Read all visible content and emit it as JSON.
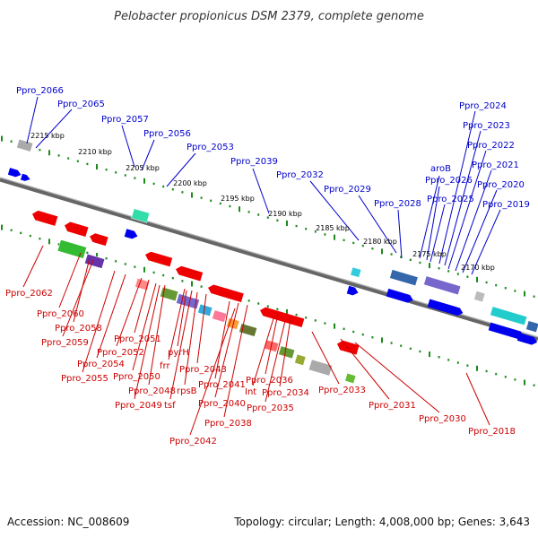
{
  "title": "Pelobacter propionicus DSM 2379, complete genome",
  "accession": "Accession: NC_008609",
  "topology": "Topology: circular; Length: 4,008,000 bp; Genes: 3,643",
  "colors": {
    "blue": "#0000cc",
    "red": "#cc0000",
    "forward": "#0000ee",
    "reverse": "#ee0000",
    "ruler": "#1a8a1a"
  },
  "ruler_labels": [
    "2215 kbp",
    "2210 kbp",
    "2205 kbp",
    "2200 kbp",
    "2195 kbp",
    "2190 kbp",
    "2185 kbp",
    "2180 kbp",
    "2175 kbp",
    "2170 kbp"
  ],
  "top_labels": [
    "Ppro_2066",
    "Ppro_2065",
    "Ppro_2057",
    "Ppro_2056",
    "Ppro_2053",
    "Ppro_2039",
    "Ppro_2032",
    "Ppro_2029",
    "Ppro_2028",
    "aroB",
    "Ppro_2026",
    "Ppro_2025",
    "Ppro_2024",
    "Ppro_2023",
    "Ppro_2022",
    "Ppro_2021",
    "Ppro_2020",
    "Ppro_2019"
  ],
  "bottom_labels": [
    "Ppro_2062",
    "Ppro_2060",
    "Ppro_2058",
    "Ppro_2059",
    "Ppro_2054",
    "Ppro_2055",
    "Ppro_2052",
    "Ppro_2051",
    "Ppro_2050",
    "Ppro_2048",
    "Ppro_2049",
    "tsf",
    "rpsB",
    "frr",
    "pyrH",
    "Ppro_2043",
    "Ppro_2042",
    "Ppro_2041",
    "Ppro_2040",
    "Ppro_2038",
    "Ppro_2036",
    "Int",
    "Ppro_2034",
    "Ppro_2035",
    "Ppro_2033",
    "Ppro_2031",
    "Ppro_2030",
    "Ppro_2018"
  ]
}
